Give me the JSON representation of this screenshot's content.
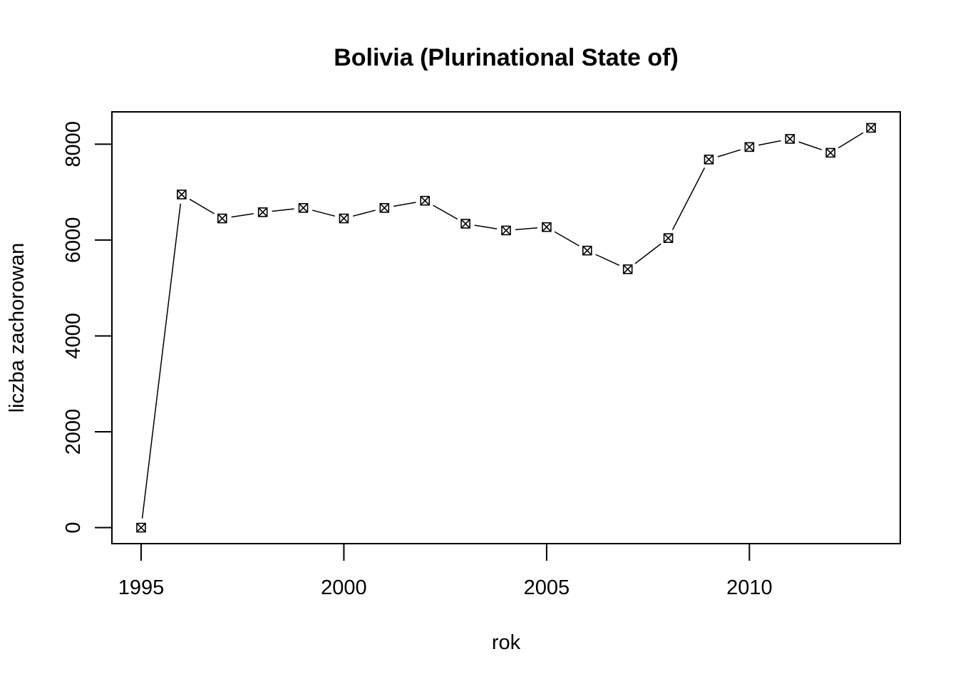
{
  "chart_data": {
    "type": "line",
    "title": "Bolivia (Plurinational State of)",
    "xlabel": "rok",
    "ylabel": "liczba zachorowan",
    "x": [
      1995,
      1996,
      1997,
      1998,
      1999,
      2000,
      2001,
      2002,
      2003,
      2004,
      2005,
      2006,
      2007,
      2008,
      2009,
      2010,
      2011,
      2012,
      2013
    ],
    "y": [
      0,
      6950,
      6450,
      6580,
      6670,
      6450,
      6670,
      6820,
      6340,
      6200,
      6270,
      5780,
      5390,
      6040,
      7680,
      7940,
      8110,
      7820,
      8340
    ],
    "xlim": [
      1994.28,
      2013.72
    ],
    "ylim": [
      -333.6,
      8673.6
    ],
    "xticks": [
      1995,
      2000,
      2005,
      2010
    ],
    "yticks": [
      0,
      2000,
      4000,
      6000,
      8000
    ],
    "marker": "square-with-x",
    "line_style": "solid line segments with gaps around markers",
    "grid": false,
    "legend": "none",
    "colors": {
      "line": "#000000",
      "background": "#ffffff"
    }
  }
}
